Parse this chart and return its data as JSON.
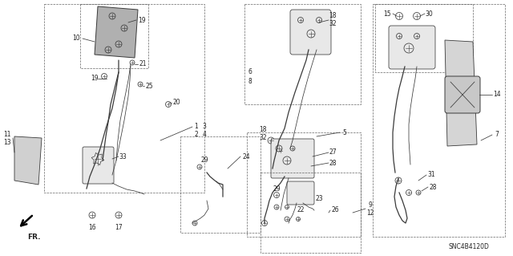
{
  "bg_color": "#ffffff",
  "diagram_code": "SNC4B4120D",
  "fig_width": 6.4,
  "fig_height": 3.19,
  "dpi": 100,
  "line_color": "#3a3a3a",
  "label_color": "#222222",
  "label_fs": 5.5,
  "box_color": "#666666",
  "component_color": "#555555"
}
